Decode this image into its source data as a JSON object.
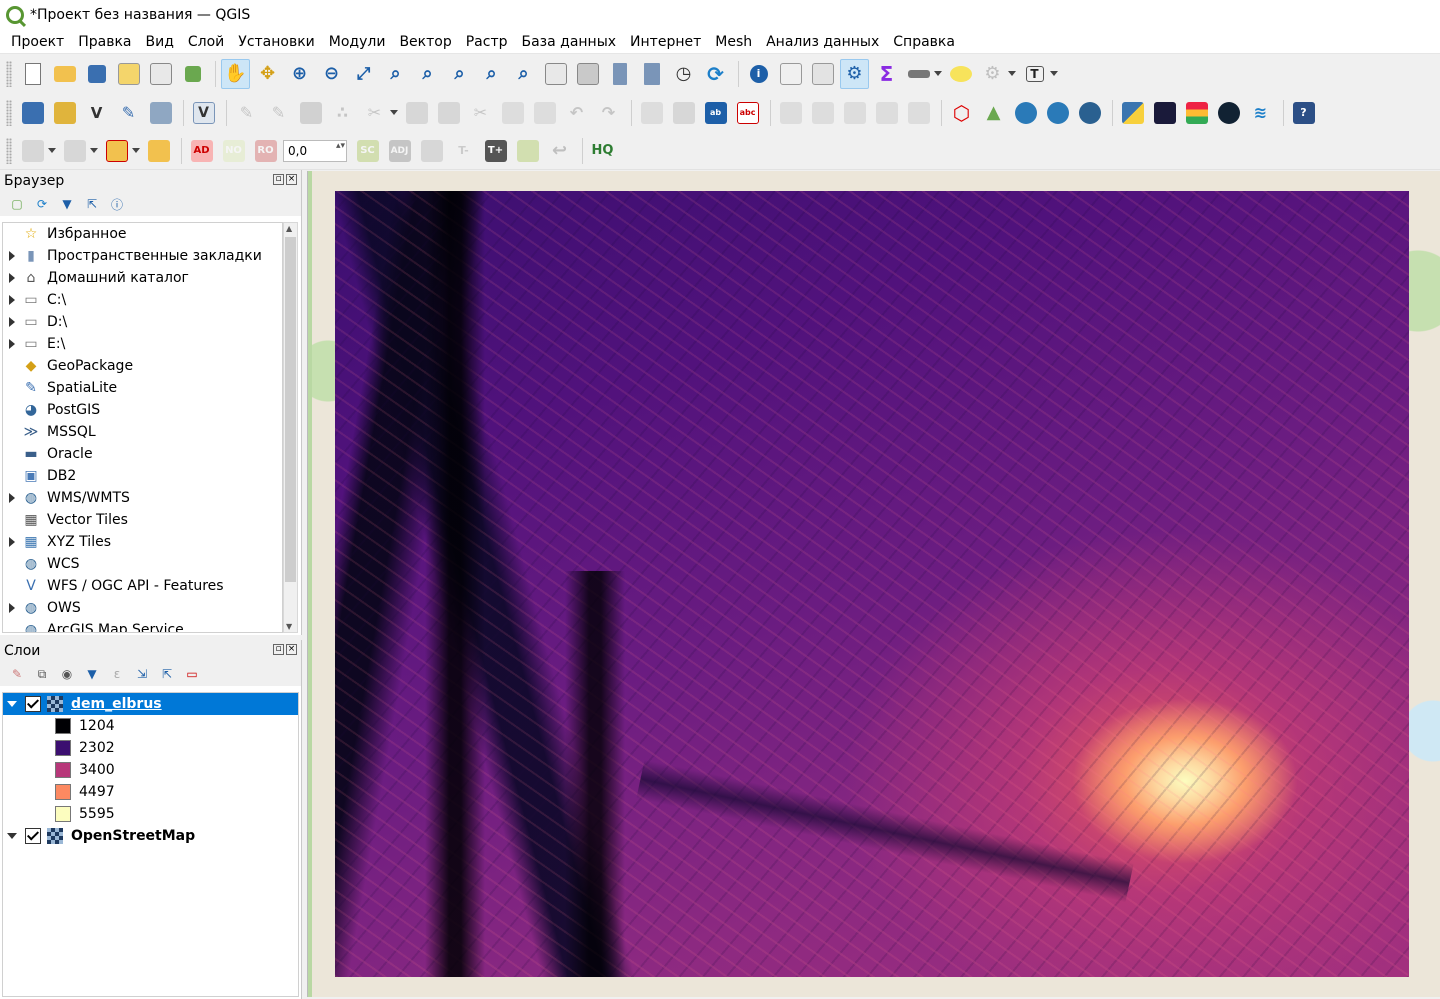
{
  "window": {
    "title": "*Проект без названия — QGIS"
  },
  "menu": [
    "Проект",
    "Правка",
    "Вид",
    "Слой",
    "Установки",
    "Модули",
    "Вектор",
    "Растр",
    "База данных",
    "Интернет",
    "Mesh",
    "Анализ данных",
    "Справка"
  ],
  "toolbar3": {
    "spin_value": "0,0",
    "labels": {
      "ad": "AD",
      "no": "NO",
      "ro": "RO",
      "sc": "SC",
      "adj": "ADJ",
      "tplus": "T+",
      "hq": "HQ"
    }
  },
  "browser": {
    "title": "Браузер",
    "items": [
      {
        "label": "Избранное",
        "icon": "star-icon",
        "expandable": false
      },
      {
        "label": "Пространственные закладки",
        "icon": "bookmark-icon",
        "expandable": true
      },
      {
        "label": "Домашний каталог",
        "icon": "home-folder-icon",
        "expandable": true
      },
      {
        "label": "C:\\",
        "icon": "folder-icon",
        "expandable": true
      },
      {
        "label": "D:\\",
        "icon": "folder-icon",
        "expandable": true
      },
      {
        "label": "E:\\",
        "icon": "folder-icon",
        "expandable": true
      },
      {
        "label": "GeoPackage",
        "icon": "geopackage-icon",
        "expandable": false
      },
      {
        "label": "SpatiaLite",
        "icon": "spatialite-icon",
        "expandable": false
      },
      {
        "label": "PostGIS",
        "icon": "postgis-icon",
        "expandable": false
      },
      {
        "label": "MSSQL",
        "icon": "mssql-icon",
        "expandable": false
      },
      {
        "label": "Oracle",
        "icon": "oracle-icon",
        "expandable": false
      },
      {
        "label": "DB2",
        "icon": "db2-icon",
        "expandable": false
      },
      {
        "label": "WMS/WMTS",
        "icon": "globe-icon",
        "expandable": true
      },
      {
        "label": "Vector Tiles",
        "icon": "vector-tiles-icon",
        "expandable": false
      },
      {
        "label": "XYZ Tiles",
        "icon": "xyz-tiles-icon",
        "expandable": true
      },
      {
        "label": "WCS",
        "icon": "wcs-icon",
        "expandable": false
      },
      {
        "label": "WFS / OGC API - Features",
        "icon": "wfs-icon",
        "expandable": false
      },
      {
        "label": "OWS",
        "icon": "ows-icon",
        "expandable": true
      },
      {
        "label": "ArcGIS Map Service",
        "icon": "arcgis-icon",
        "expandable": false
      }
    ]
  },
  "layers": {
    "title": "Слои",
    "items": [
      {
        "name": "dem_elbrus",
        "checked": true,
        "selected": true,
        "legend": [
          {
            "label": "1204",
            "color": "#000004"
          },
          {
            "label": "2302",
            "color": "#3b0f70"
          },
          {
            "label": "3400",
            "color": "#b73779"
          },
          {
            "label": "4497",
            "color": "#fc8961"
          },
          {
            "label": "5595",
            "color": "#fcfdbf"
          }
        ]
      },
      {
        "name": "OpenStreetMap",
        "checked": true,
        "selected": false,
        "legend": []
      }
    ]
  },
  "colors": {
    "accent": "#0078d7",
    "qgis_green": "#589632"
  }
}
